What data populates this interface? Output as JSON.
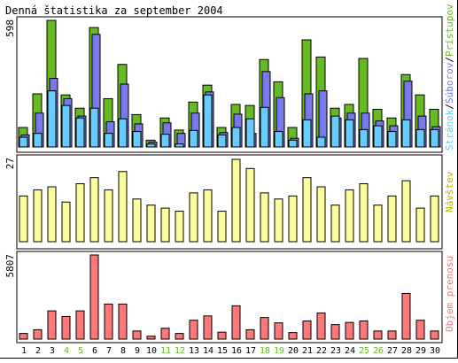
{
  "title": "Denná štatistika za september 2004",
  "colors": {
    "hits": "#66bb22",
    "files": "#7777ee",
    "pages": "#66ccff",
    "visits": "#ffff99",
    "volume": "#ff7777",
    "weekend_label": "#66bb22",
    "weekday_label": "#000000",
    "legend_visits": "#b8b800"
  },
  "chart_data": [
    {
      "type": "bar",
      "title": "Denná štatistika za september 2004",
      "categories": [
        "1",
        "2",
        "3",
        "4",
        "5",
        "6",
        "7",
        "8",
        "9",
        "10",
        "11",
        "12",
        "13",
        "14",
        "15",
        "16",
        "17",
        "18",
        "19",
        "20",
        "21",
        "22",
        "23",
        "24",
        "25",
        "26",
        "27",
        "28",
        "29",
        "30"
      ],
      "weekend_days": [
        "4",
        "5",
        "11",
        "12",
        "18",
        "19",
        "25",
        "26"
      ],
      "ymax_label": "598",
      "ylim": [
        0,
        598
      ],
      "legend": [
        "Stránok",
        "Súborov",
        "Prístupov"
      ],
      "series": [
        {
          "name": "Prístupov",
          "values": [
            92,
            251,
            598,
            246,
            183,
            564,
            228,
            390,
            153,
            32,
            137,
            80,
            212,
            292,
            92,
            201,
            196,
            413,
            308,
            92,
            506,
            425,
            183,
            201,
            418,
            178,
            137,
            342,
            246,
            178
          ]
        },
        {
          "name": "Súborov",
          "values": [
            57,
            160,
            324,
            228,
            146,
            532,
            119,
            297,
            109,
            23,
            114,
            64,
            160,
            260,
            68,
            155,
            64,
            356,
            233,
            41,
            251,
            265,
            137,
            160,
            160,
            123,
            100,
            311,
            146,
            96
          ]
        },
        {
          "name": "Stránok",
          "values": [
            46,
            64,
            265,
            196,
            137,
            183,
            64,
            133,
            73,
            14,
            60,
            14,
            78,
            246,
            57,
            92,
            133,
            187,
            73,
            32,
            128,
            46,
            146,
            128,
            82,
            100,
            73,
            128,
            82,
            82
          ]
        }
      ]
    },
    {
      "type": "bar",
      "categories": [
        "1",
        "2",
        "3",
        "4",
        "5",
        "6",
        "7",
        "8",
        "9",
        "10",
        "11",
        "12",
        "13",
        "14",
        "15",
        "16",
        "17",
        "18",
        "19",
        "20",
        "21",
        "22",
        "23",
        "24",
        "25",
        "26",
        "27",
        "28",
        "29",
        "30"
      ],
      "ymax_label": "27",
      "ylim": [
        0,
        27
      ],
      "legend": [
        "Návštev"
      ],
      "series": [
        {
          "name": "Návštev",
          "values": [
            15,
            17,
            18,
            13,
            19,
            21,
            17,
            23,
            14,
            12,
            11,
            10,
            16,
            17,
            10,
            27,
            24,
            16,
            14,
            15,
            21,
            18,
            12,
            17,
            19,
            12,
            15,
            20,
            11,
            15
          ]
        }
      ]
    },
    {
      "type": "bar",
      "categories": [
        "1",
        "2",
        "3",
        "4",
        "5",
        "6",
        "7",
        "8",
        "9",
        "10",
        "11",
        "12",
        "13",
        "14",
        "15",
        "16",
        "17",
        "18",
        "19",
        "20",
        "21",
        "22",
        "23",
        "24",
        "25",
        "26",
        "27",
        "28",
        "29",
        "30"
      ],
      "ymax_label": "5807",
      "ylim": [
        0,
        5807
      ],
      "legend": [
        "Objem prenosu"
      ],
      "series": [
        {
          "name": "Objem prenosu",
          "values": [
            390,
            650,
            1950,
            1560,
            1950,
            5807,
            2420,
            2420,
            560,
            200,
            750,
            390,
            1300,
            1600,
            480,
            2300,
            650,
            1490,
            1120,
            450,
            1250,
            1800,
            1000,
            1150,
            1250,
            560,
            560,
            3150,
            1300,
            560
          ]
        }
      ]
    }
  ]
}
